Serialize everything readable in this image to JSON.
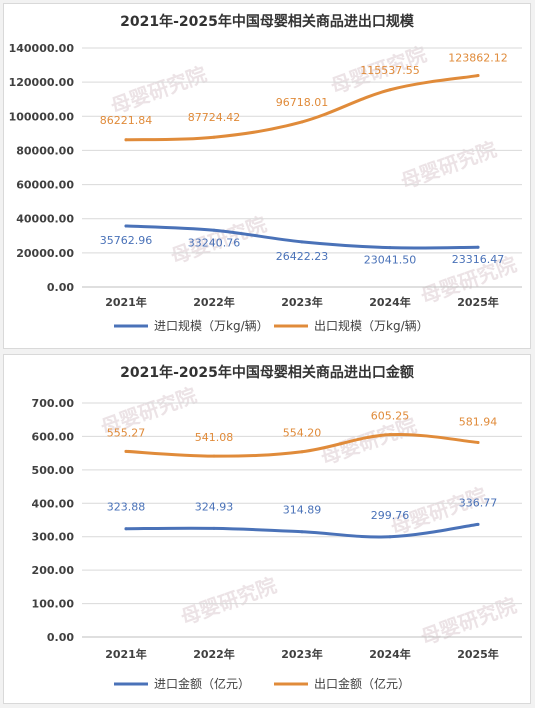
{
  "colors": {
    "import": "#4a72b8",
    "export": "#e08b3a",
    "grid": "#d9d9d9",
    "axis": "#bfbfbf"
  },
  "watermark": "母婴研究院",
  "chart_data": [
    {
      "type": "line",
      "title": "2021年-2025年中国母婴相关商品进出口规模",
      "categories": [
        "2021年",
        "2022年",
        "2023年",
        "2024年",
        "2025年"
      ],
      "ylim": [
        0,
        140000
      ],
      "yticks": [
        "0.00",
        "20000.00",
        "40000.00",
        "60000.00",
        "80000.00",
        "100000.00",
        "120000.00",
        "140000.00"
      ],
      "grid": true,
      "legend_position": "bottom",
      "series": [
        {
          "name": "进口规模（万kg/辆）",
          "values": [
            35762.96,
            33240.76,
            26422.23,
            23041.5,
            23316.47
          ],
          "labels": [
            "35762.96",
            "33240.76",
            "26422.23",
            "23041.50",
            "23316.47"
          ]
        },
        {
          "name": "出口规模（万kg/辆）",
          "values": [
            86221.84,
            87724.42,
            96718.01,
            115537.55,
            123862.12
          ],
          "labels": [
            "86221.84",
            "87724.42",
            "96718.01",
            "115537.55",
            "123862.12"
          ]
        }
      ]
    },
    {
      "type": "line",
      "title": "2021年-2025年中国母婴相关商品进出口金额",
      "categories": [
        "2021年",
        "2022年",
        "2023年",
        "2024年",
        "2025年"
      ],
      "ylim": [
        0,
        700
      ],
      "yticks": [
        "0.00",
        "100.00",
        "200.00",
        "300.00",
        "400.00",
        "500.00",
        "600.00",
        "700.00"
      ],
      "grid": true,
      "legend_position": "bottom",
      "series": [
        {
          "name": "进口金额（亿元）",
          "values": [
            323.88,
            324.93,
            314.89,
            299.76,
            336.77
          ],
          "labels": [
            "323.88",
            "324.93",
            "314.89",
            "299.76",
            "336.77"
          ]
        },
        {
          "name": "出口金额（亿元）",
          "values": [
            555.27,
            541.08,
            554.2,
            605.25,
            581.94
          ],
          "labels": [
            "555.27",
            "541.08",
            "554.20",
            "605.25",
            "581.94"
          ]
        }
      ]
    }
  ]
}
